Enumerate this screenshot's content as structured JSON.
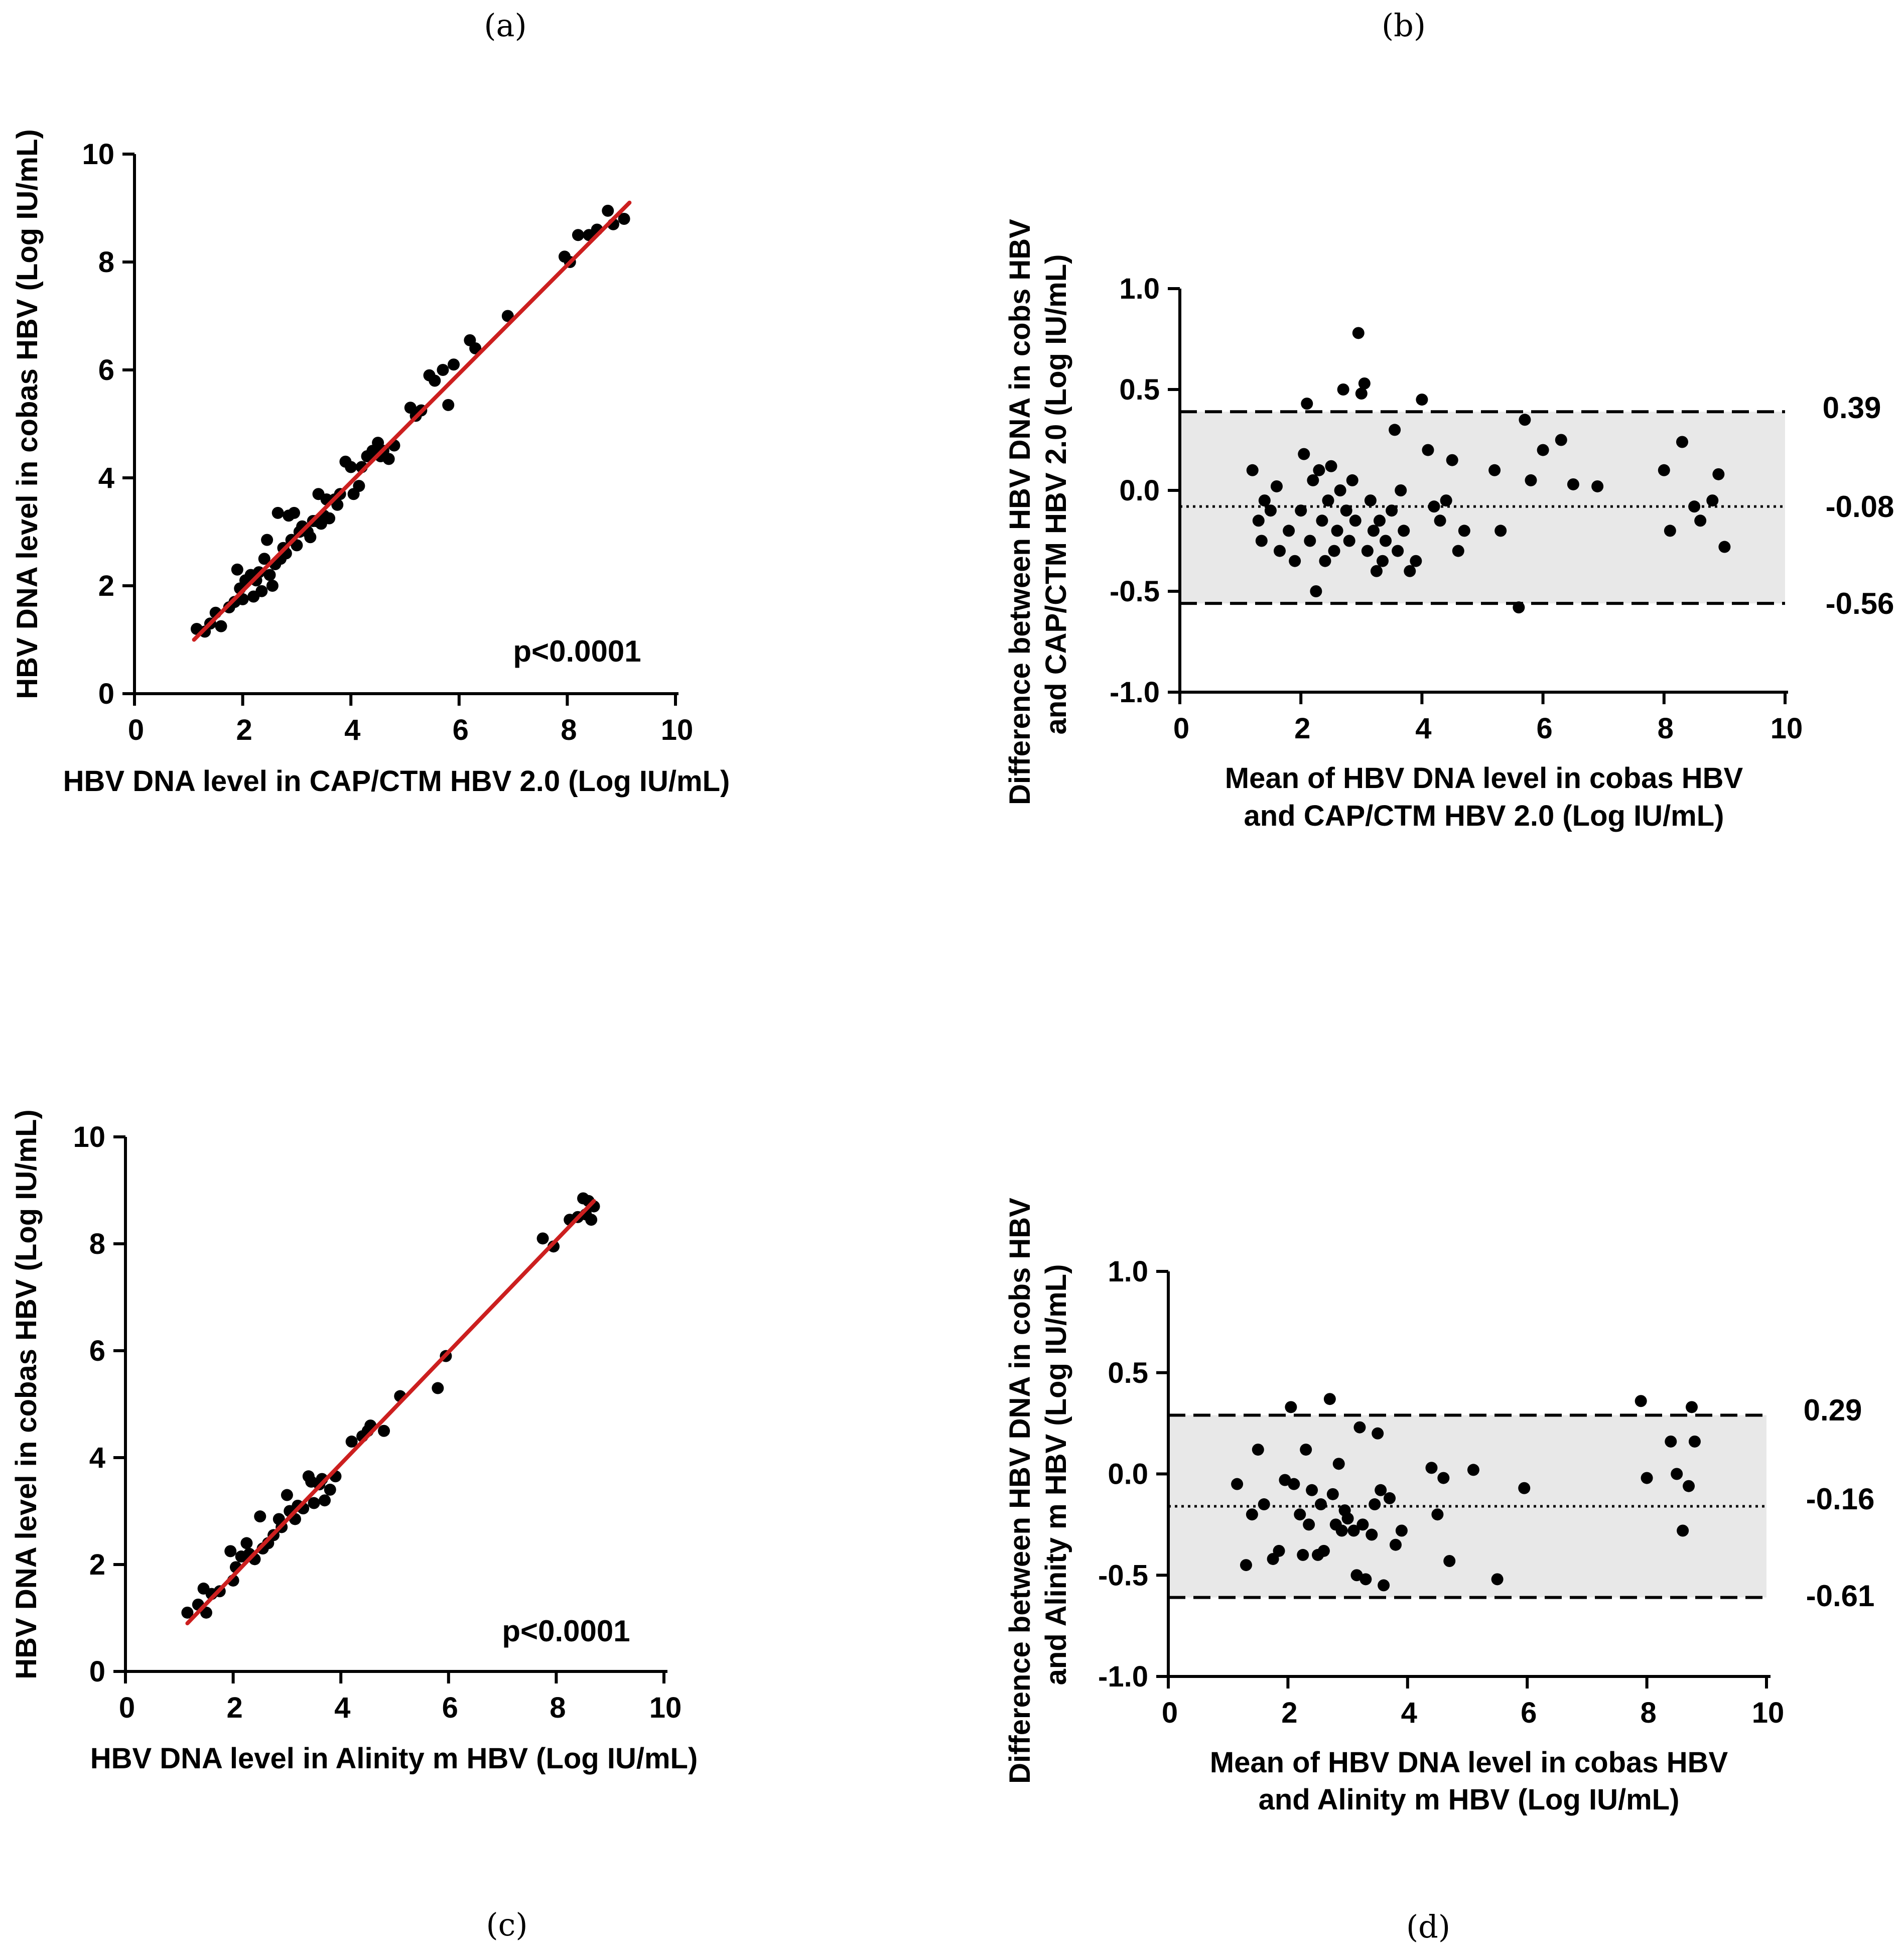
{
  "chart_data": [
    {
      "panel": "(a)",
      "type": "scatter",
      "title": "",
      "xlabel": "HBV DNA level in CAP/CTM HBV 2.0 (Log IU/mL)",
      "ylabel": "HBV DNA level in cobas HBV (Log IU/mL)",
      "xlim": [
        0,
        10
      ],
      "ylim": [
        0,
        10
      ],
      "xticks": [
        "0",
        "2",
        "4",
        "6",
        "8",
        "10"
      ],
      "yticks": [
        "0",
        "2",
        "4",
        "6",
        "8",
        "10"
      ],
      "annotation": "p<0.0001",
      "regression": {
        "x": [
          1.1,
          9.15
        ],
        "y": [
          1.0,
          9.1
        ],
        "color": "#cc1f1f"
      },
      "point_color": "#000000",
      "points": [
        [
          1.15,
          1.2
        ],
        [
          1.3,
          1.15
        ],
        [
          1.4,
          1.3
        ],
        [
          1.5,
          1.5
        ],
        [
          1.6,
          1.25
        ],
        [
          1.75,
          1.6
        ],
        [
          1.85,
          1.7
        ],
        [
          1.9,
          2.3
        ],
        [
          1.95,
          1.95
        ],
        [
          2.0,
          1.75
        ],
        [
          2.05,
          2.1
        ],
        [
          2.15,
          2.2
        ],
        [
          2.2,
          1.8
        ],
        [
          2.25,
          2.1
        ],
        [
          2.3,
          2.25
        ],
        [
          2.35,
          1.9
        ],
        [
          2.4,
          2.5
        ],
        [
          2.45,
          2.85
        ],
        [
          2.5,
          2.2
        ],
        [
          2.55,
          2.0
        ],
        [
          2.6,
          2.4
        ],
        [
          2.65,
          3.35
        ],
        [
          2.7,
          2.5
        ],
        [
          2.75,
          2.7
        ],
        [
          2.8,
          2.6
        ],
        [
          2.85,
          3.3
        ],
        [
          2.9,
          2.85
        ],
        [
          2.95,
          3.35
        ],
        [
          3.0,
          2.75
        ],
        [
          3.05,
          3.0
        ],
        [
          3.1,
          3.1
        ],
        [
          3.2,
          3.0
        ],
        [
          3.25,
          2.9
        ],
        [
          3.3,
          3.2
        ],
        [
          3.35,
          3.2
        ],
        [
          3.4,
          3.7
        ],
        [
          3.45,
          3.15
        ],
        [
          3.5,
          3.3
        ],
        [
          3.55,
          3.6
        ],
        [
          3.6,
          3.25
        ],
        [
          3.7,
          3.6
        ],
        [
          3.75,
          3.5
        ],
        [
          3.8,
          3.7
        ],
        [
          3.9,
          4.3
        ],
        [
          4.0,
          4.2
        ],
        [
          4.05,
          3.7
        ],
        [
          4.15,
          3.85
        ],
        [
          4.2,
          4.2
        ],
        [
          4.3,
          4.4
        ],
        [
          4.4,
          4.5
        ],
        [
          4.45,
          4.45
        ],
        [
          4.5,
          4.65
        ],
        [
          4.55,
          4.4
        ],
        [
          4.6,
          4.5
        ],
        [
          4.7,
          4.35
        ],
        [
          4.8,
          4.6
        ],
        [
          5.1,
          5.3
        ],
        [
          5.2,
          5.15
        ],
        [
          5.3,
          5.25
        ],
        [
          5.45,
          5.9
        ],
        [
          5.55,
          5.8
        ],
        [
          5.7,
          6.0
        ],
        [
          5.8,
          5.35
        ],
        [
          5.9,
          6.1
        ],
        [
          6.2,
          6.55
        ],
        [
          6.3,
          6.4
        ],
        [
          6.9,
          7.0
        ],
        [
          7.95,
          8.1
        ],
        [
          8.05,
          8.0
        ],
        [
          8.2,
          8.5
        ],
        [
          8.4,
          8.5
        ],
        [
          8.55,
          8.6
        ],
        [
          8.75,
          8.95
        ],
        [
          8.85,
          8.7
        ],
        [
          9.05,
          8.8
        ]
      ]
    },
    {
      "panel": "(b)",
      "type": "scatter",
      "title": "",
      "xlabel": [
        "Mean of HBV DNA level in  cobas HBV",
        "and CAP/CTM HBV 2.0 (Log IU/mL)"
      ],
      "ylabel": [
        "Difference between HBV DNA in cobs HBV",
        "and CAP/CTM HBV 2.0 (Log IU/mL)"
      ],
      "xlim": [
        0,
        10
      ],
      "ylim": [
        -1.0,
        1.0
      ],
      "xticks": [
        "0",
        "2",
        "4",
        "6",
        "8",
        "10"
      ],
      "yticks": [
        "-1.0",
        "-0.5",
        "0.0",
        "0.5",
        "1.0"
      ],
      "upper_loa": 0.39,
      "mean_bias": -0.08,
      "lower_loa": -0.56,
      "upper_label": "0.39",
      "mean_label": "-0.08",
      "lower_label": "-0.56",
      "band_color": "#e8e8e8",
      "point_color": "#000000",
      "points": [
        [
          1.2,
          0.1
        ],
        [
          1.3,
          -0.15
        ],
        [
          1.35,
          -0.25
        ],
        [
          1.4,
          -0.05
        ],
        [
          1.5,
          -0.1
        ],
        [
          1.6,
          0.02
        ],
        [
          1.65,
          -0.3
        ],
        [
          1.8,
          -0.2
        ],
        [
          1.9,
          -0.35
        ],
        [
          2.0,
          -0.1
        ],
        [
          2.05,
          0.18
        ],
        [
          2.1,
          0.43
        ],
        [
          2.15,
          -0.25
        ],
        [
          2.2,
          0.05
        ],
        [
          2.25,
          -0.5
        ],
        [
          2.3,
          0.1
        ],
        [
          2.35,
          -0.15
        ],
        [
          2.4,
          -0.35
        ],
        [
          2.45,
          -0.05
        ],
        [
          2.5,
          0.12
        ],
        [
          2.55,
          -0.3
        ],
        [
          2.6,
          -0.2
        ],
        [
          2.65,
          0.0
        ],
        [
          2.7,
          0.5
        ],
        [
          2.75,
          -0.1
        ],
        [
          2.8,
          -0.25
        ],
        [
          2.85,
          0.05
        ],
        [
          2.9,
          -0.15
        ],
        [
          2.95,
          0.78
        ],
        [
          3.0,
          0.48
        ],
        [
          3.05,
          0.53
        ],
        [
          3.1,
          -0.3
        ],
        [
          3.15,
          -0.05
        ],
        [
          3.2,
          -0.2
        ],
        [
          3.25,
          -0.4
        ],
        [
          3.3,
          -0.15
        ],
        [
          3.35,
          -0.35
        ],
        [
          3.4,
          -0.25
        ],
        [
          3.5,
          -0.1
        ],
        [
          3.55,
          0.3
        ],
        [
          3.6,
          -0.3
        ],
        [
          3.65,
          0.0
        ],
        [
          3.7,
          -0.2
        ],
        [
          3.8,
          -0.4
        ],
        [
          3.9,
          -0.35
        ],
        [
          4.0,
          0.45
        ],
        [
          4.1,
          0.2
        ],
        [
          4.2,
          -0.08
        ],
        [
          4.3,
          -0.15
        ],
        [
          4.4,
          -0.05
        ],
        [
          4.5,
          0.15
        ],
        [
          4.6,
          -0.3
        ],
        [
          4.7,
          -0.2
        ],
        [
          5.2,
          0.1
        ],
        [
          5.3,
          -0.2
        ],
        [
          5.6,
          -0.58
        ],
        [
          5.7,
          0.35
        ],
        [
          5.8,
          0.05
        ],
        [
          6.0,
          0.2
        ],
        [
          6.3,
          0.25
        ],
        [
          6.5,
          0.03
        ],
        [
          6.9,
          0.02
        ],
        [
          8.0,
          0.1
        ],
        [
          8.1,
          -0.2
        ],
        [
          8.3,
          0.24
        ],
        [
          8.5,
          -0.08
        ],
        [
          8.6,
          -0.15
        ],
        [
          8.8,
          -0.05
        ],
        [
          8.9,
          0.08
        ],
        [
          9.0,
          -0.28
        ]
      ]
    },
    {
      "panel": "(c)",
      "type": "scatter",
      "title": "",
      "xlabel": "HBV DNA level in Alinity m HBV (Log IU/mL)",
      "ylabel": "HBV DNA level in cobas HBV (Log IU/mL)",
      "xlim": [
        0,
        10
      ],
      "ylim": [
        0,
        10
      ],
      "xticks": [
        "0",
        "2",
        "4",
        "6",
        "8",
        "10"
      ],
      "yticks": [
        "0",
        "2",
        "4",
        "6",
        "8",
        "10"
      ],
      "annotation": "p<0.0001",
      "regression": {
        "x": [
          1.15,
          8.7
        ],
        "y": [
          0.9,
          8.8
        ],
        "color": "#cc1f1f"
      },
      "point_color": "#000000",
      "points": [
        [
          1.15,
          1.1
        ],
        [
          1.35,
          1.25
        ],
        [
          1.45,
          1.55
        ],
        [
          1.5,
          1.1
        ],
        [
          1.6,
          1.45
        ],
        [
          1.75,
          1.5
        ],
        [
          1.95,
          2.25
        ],
        [
          2.0,
          1.7
        ],
        [
          2.05,
          1.95
        ],
        [
          2.15,
          2.15
        ],
        [
          2.25,
          2.4
        ],
        [
          2.3,
          2.2
        ],
        [
          2.4,
          2.1
        ],
        [
          2.5,
          2.9
        ],
        [
          2.55,
          2.3
        ],
        [
          2.65,
          2.4
        ],
        [
          2.75,
          2.55
        ],
        [
          2.85,
          2.85
        ],
        [
          2.9,
          2.7
        ],
        [
          3.0,
          3.3
        ],
        [
          3.05,
          3.0
        ],
        [
          3.15,
          2.85
        ],
        [
          3.2,
          3.1
        ],
        [
          3.3,
          3.05
        ],
        [
          3.4,
          3.65
        ],
        [
          3.45,
          3.55
        ],
        [
          3.5,
          3.15
        ],
        [
          3.6,
          3.5
        ],
        [
          3.65,
          3.6
        ],
        [
          3.7,
          3.2
        ],
        [
          3.8,
          3.4
        ],
        [
          3.9,
          3.65
        ],
        [
          4.2,
          4.3
        ],
        [
          4.4,
          4.4
        ],
        [
          4.5,
          4.5
        ],
        [
          4.55,
          4.6
        ],
        [
          4.8,
          4.5
        ],
        [
          5.1,
          5.15
        ],
        [
          5.8,
          5.3
        ],
        [
          5.95,
          5.9
        ],
        [
          7.75,
          8.1
        ],
        [
          7.95,
          7.95
        ],
        [
          8.25,
          8.45
        ],
        [
          8.4,
          8.5
        ],
        [
          8.5,
          8.85
        ],
        [
          8.55,
          8.55
        ],
        [
          8.6,
          8.8
        ],
        [
          8.65,
          8.45
        ],
        [
          8.7,
          8.7
        ]
      ]
    },
    {
      "panel": "(d)",
      "type": "scatter",
      "title": "",
      "xlabel": [
        "Mean of HBV DNA level in  cobas HBV",
        "and Alinity m HBV (Log IU/mL)"
      ],
      "ylabel": [
        "Difference between HBV DNA in cobs HBV",
        "and Alinity m HBV (Log IU/mL)"
      ],
      "xlim": [
        0,
        10
      ],
      "ylim": [
        -1.0,
        1.0
      ],
      "xticks": [
        "0",
        "2",
        "4",
        "6",
        "8",
        "10"
      ],
      "yticks": [
        "-1.0",
        "-0.5",
        "0.0",
        "0.5",
        "1.0"
      ],
      "upper_loa": 0.29,
      "mean_bias": -0.16,
      "lower_loa": -0.61,
      "upper_label": "0.29",
      "mean_label": "-0.16",
      "lower_label": "-0.61",
      "band_color": "#e8e8e8",
      "point_color": "#000000",
      "points": [
        [
          1.15,
          -0.05
        ],
        [
          1.3,
          -0.45
        ],
        [
          1.4,
          -0.2
        ],
        [
          1.5,
          0.12
        ],
        [
          1.6,
          -0.15
        ],
        [
          1.75,
          -0.42
        ],
        [
          1.85,
          -0.38
        ],
        [
          1.95,
          -0.03
        ],
        [
          2.05,
          0.33
        ],
        [
          2.1,
          -0.05
        ],
        [
          2.2,
          -0.2
        ],
        [
          2.25,
          -0.4
        ],
        [
          2.3,
          0.12
        ],
        [
          2.35,
          -0.25
        ],
        [
          2.4,
          -0.08
        ],
        [
          2.5,
          -0.4
        ],
        [
          2.55,
          -0.15
        ],
        [
          2.6,
          -0.38
        ],
        [
          2.7,
          0.37
        ],
        [
          2.75,
          -0.1
        ],
        [
          2.8,
          -0.25
        ],
        [
          2.85,
          0.05
        ],
        [
          2.9,
          -0.28
        ],
        [
          2.95,
          -0.18
        ],
        [
          3.0,
          -0.22
        ],
        [
          3.1,
          -0.28
        ],
        [
          3.15,
          -0.5
        ],
        [
          3.2,
          0.23
        ],
        [
          3.25,
          -0.25
        ],
        [
          3.3,
          -0.52
        ],
        [
          3.4,
          -0.3
        ],
        [
          3.45,
          -0.15
        ],
        [
          3.5,
          0.2
        ],
        [
          3.55,
          -0.08
        ],
        [
          3.6,
          -0.55
        ],
        [
          3.7,
          -0.12
        ],
        [
          3.8,
          -0.35
        ],
        [
          3.9,
          -0.28
        ],
        [
          4.4,
          0.03
        ],
        [
          4.5,
          -0.2
        ],
        [
          4.6,
          -0.02
        ],
        [
          4.7,
          -0.43
        ],
        [
          5.1,
          0.02
        ],
        [
          5.5,
          -0.52
        ],
        [
          5.95,
          -0.07
        ],
        [
          7.9,
          0.36
        ],
        [
          8.0,
          -0.02
        ],
        [
          8.4,
          0.16
        ],
        [
          8.5,
          0.0
        ],
        [
          8.6,
          -0.28
        ],
        [
          8.7,
          -0.06
        ],
        [
          8.75,
          0.33
        ],
        [
          8.8,
          0.16
        ]
      ]
    }
  ]
}
